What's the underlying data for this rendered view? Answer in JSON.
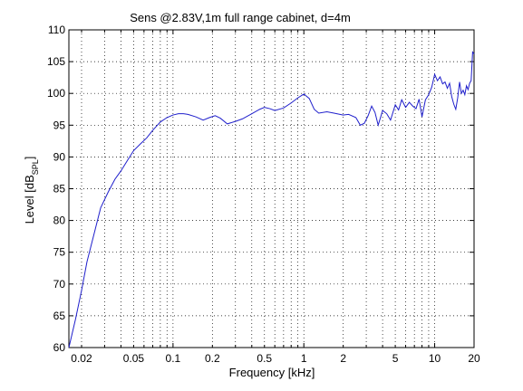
{
  "chart_data": {
    "type": "line",
    "title": "Sens @2.83V,1m full range cabinet, d=4m",
    "xlabel": "Frequency [kHz]",
    "ylabel": {
      "main": "Level [dB",
      "sub": "SPL",
      "close": "]"
    },
    "xscale": "log",
    "xlim": [
      0.016,
      20
    ],
    "ylim": [
      60,
      110
    ],
    "grid": true,
    "grid_style": "dotted",
    "x_tick_labels": [
      "0.02",
      "0.05",
      "0.1",
      "0.2",
      "0.5",
      "1",
      "2",
      "5",
      "10",
      "20"
    ],
    "y_tick_labels": [
      "60",
      "65",
      "70",
      "75",
      "80",
      "85",
      "90",
      "95",
      "100",
      "105",
      "110"
    ],
    "line_color": "#1f1fcc",
    "series": [
      {
        "x": [
          0.016,
          0.018,
          0.02,
          0.022,
          0.025,
          0.028,
          0.032,
          0.036,
          0.04,
          0.045,
          0.05,
          0.056,
          0.063,
          0.07,
          0.08,
          0.09,
          0.1,
          0.11,
          0.12,
          0.13,
          0.15,
          0.17,
          0.19,
          0.21,
          0.23,
          0.26,
          0.3,
          0.34,
          0.4,
          0.46,
          0.5,
          0.55,
          0.6,
          0.7,
          0.8,
          0.9,
          1.0,
          1.1,
          1.2,
          1.3,
          1.5,
          1.7,
          2.0,
          2.2,
          2.5,
          2.7,
          2.9,
          3.1,
          3.3,
          3.5,
          3.7,
          4.0,
          4.3,
          4.6,
          5.0,
          5.3,
          5.6,
          6.0,
          6.4,
          6.8,
          7.2,
          7.6,
          8.0,
          8.5,
          9.0,
          9.5,
          10.0,
          10.5,
          11.0,
          11.5,
          12.0,
          12.5,
          13.0,
          13.5,
          14.0,
          14.5,
          15.0,
          15.5,
          16.0,
          16.5,
          17.0,
          17.5,
          18.0,
          18.5,
          19.0,
          19.5,
          20.0
        ],
        "y": [
          60.0,
          64.5,
          69.0,
          73.5,
          78.0,
          82.0,
          84.5,
          86.5,
          87.8,
          89.5,
          91.0,
          92.0,
          93.0,
          94.2,
          95.5,
          96.2,
          96.6,
          96.8,
          96.8,
          96.7,
          96.3,
          95.8,
          96.2,
          96.5,
          96.1,
          95.2,
          95.6,
          96.0,
          96.8,
          97.5,
          97.8,
          97.6,
          97.3,
          97.7,
          98.5,
          99.3,
          99.9,
          99.2,
          97.5,
          96.9,
          97.1,
          96.9,
          96.6,
          96.7,
          96.2,
          95.0,
          95.3,
          96.5,
          98.0,
          97.0,
          95.0,
          97.3,
          96.8,
          95.8,
          98.2,
          97.4,
          99.0,
          97.8,
          98.6,
          98.0,
          97.6,
          99.1,
          96.3,
          99.0,
          99.8,
          101.0,
          103.0,
          102.0,
          102.6,
          101.5,
          101.8,
          100.8,
          101.6,
          99.5,
          98.3,
          97.5,
          99.3,
          101.8,
          100.0,
          100.5,
          99.8,
          101.2,
          100.6,
          101.6,
          102.0,
          106.5,
          106.2
        ]
      }
    ]
  }
}
